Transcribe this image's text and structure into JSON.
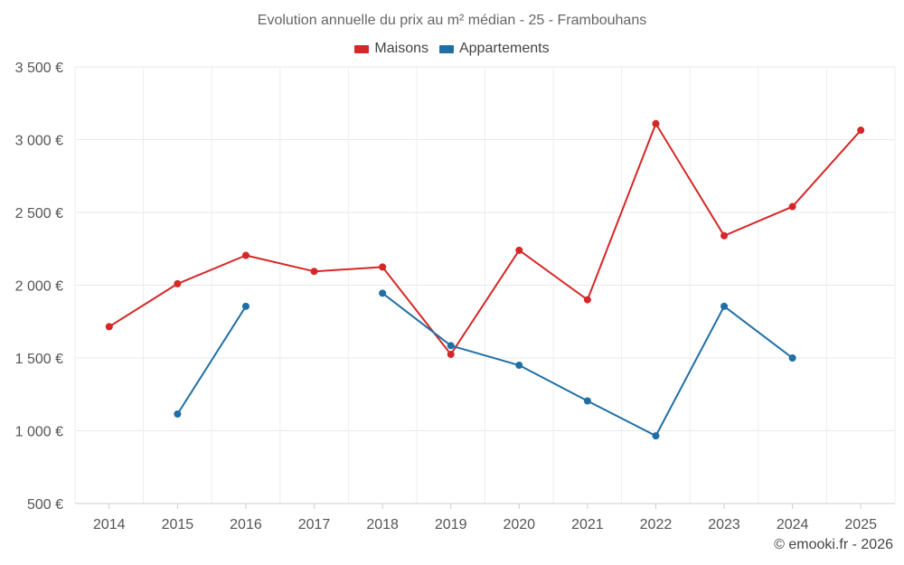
{
  "chart_data": {
    "type": "line",
    "title": "Evolution annuelle du prix au m² médian - 25 - Frambouhans",
    "categories": [
      "2014",
      "2015",
      "2016",
      "2017",
      "2018",
      "2019",
      "2020",
      "2021",
      "2022",
      "2023",
      "2024",
      "2025"
    ],
    "y_ticks": [
      500,
      1000,
      1500,
      2000,
      2500,
      3000,
      3500
    ],
    "y_tick_labels": [
      "500 €",
      "1 000 €",
      "1 500 €",
      "2 000 €",
      "2 500 €",
      "3 000 €",
      "3 500 €"
    ],
    "ylim": [
      500,
      3500
    ],
    "grid": true,
    "legend_position": "top-center",
    "series": [
      {
        "name": "Maisons",
        "color": "#d62728",
        "values": [
          1715,
          2010,
          2205,
          2095,
          2125,
          1525,
          2240,
          1900,
          3110,
          2340,
          2540,
          3065
        ]
      },
      {
        "name": "Appartements",
        "color": "#1f6fa5",
        "values": [
          null,
          1115,
          1855,
          null,
          1945,
          1585,
          1450,
          1205,
          965,
          1855,
          1500,
          null
        ]
      }
    ]
  },
  "footer": {
    "copyright": "© emooki.fr - 2026"
  }
}
